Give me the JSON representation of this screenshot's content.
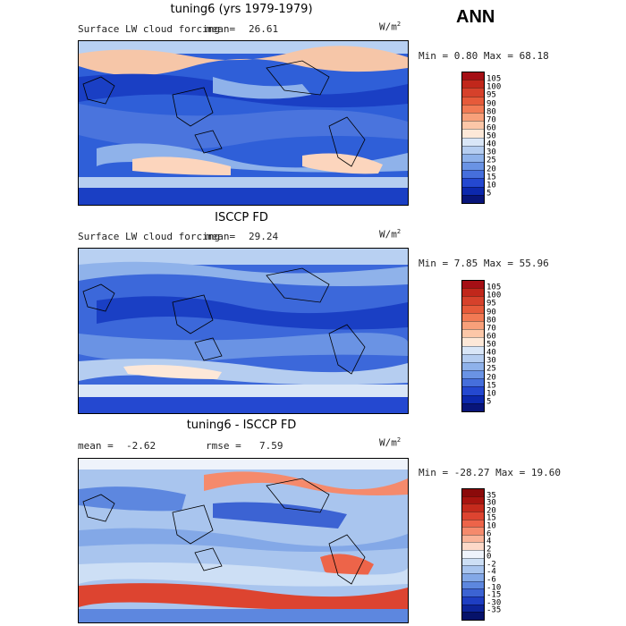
{
  "season": "ANN",
  "panels": [
    {
      "id": "model",
      "title": "tuning6 (yrs 1979-1979)",
      "variable": "Surface LW cloud forcing",
      "mean_label": "mean=",
      "mean_value": "26.61",
      "units_base": "W/m",
      "units_exp": "2",
      "min_max": "Min =   0.80 Max =  68.18",
      "colorbar_levels": [
        "105",
        "100",
        "95",
        "90",
        "80",
        "70",
        "60",
        "50",
        "40",
        "30",
        "25",
        "20",
        "15",
        "10",
        "5"
      ],
      "colorbar_colors": [
        "#a50f15",
        "#c1271b",
        "#d6412b",
        "#e65a3a",
        "#f27a54",
        "#f8a07a",
        "#fcc7a8",
        "#fde8d8",
        "#d9e6f7",
        "#b5cdf0",
        "#8fb2ea",
        "#6a93e4",
        "#466fdc",
        "#2448d0",
        "#0c28ad",
        "#08157a"
      ]
    },
    {
      "id": "obs",
      "title": "ISCCP FD",
      "variable": "Surface LW cloud forcing",
      "mean_label": "mean=",
      "mean_value": "29.24",
      "units_base": "W/m",
      "units_exp": "2",
      "min_max": "Min =   7.85 Max =  55.96",
      "colorbar_levels": [
        "105",
        "100",
        "95",
        "90",
        "80",
        "70",
        "60",
        "50",
        "40",
        "30",
        "25",
        "20",
        "15",
        "10",
        "5"
      ],
      "colorbar_colors": [
        "#a50f15",
        "#c1271b",
        "#d6412b",
        "#e65a3a",
        "#f27a54",
        "#f8a07a",
        "#fcc7a8",
        "#fde8d8",
        "#d9e6f7",
        "#b5cdf0",
        "#8fb2ea",
        "#6a93e4",
        "#466fdc",
        "#2448d0",
        "#0c28ad",
        "#08157a"
      ]
    },
    {
      "id": "diff",
      "title": "tuning6 - ISCCP FD",
      "mean_label": "mean =",
      "mean_value": "-2.62",
      "rmse_label": "rmse =",
      "rmse_value": "7.59",
      "units_base": "W/m",
      "units_exp": "2",
      "min_max": "Min = -28.27 Max =  19.60",
      "colorbar_levels": [
        "35",
        "30",
        "20",
        "15",
        "10",
        "6",
        "4",
        "2",
        "0",
        "-2",
        "-4",
        "-6",
        "-10",
        "-15",
        "-30",
        "-35"
      ],
      "colorbar_colors": [
        "#8b0a0a",
        "#a8140f",
        "#c52a1c",
        "#dd4430",
        "#ed6449",
        "#f58a6c",
        "#fab398",
        "#fdd9c8",
        "#eef3fb",
        "#cddff5",
        "#a9c5ee",
        "#83a8e7",
        "#5d87df",
        "#3c63d3",
        "#1e3ec2",
        "#0d2499",
        "#06126a"
      ]
    }
  ]
}
